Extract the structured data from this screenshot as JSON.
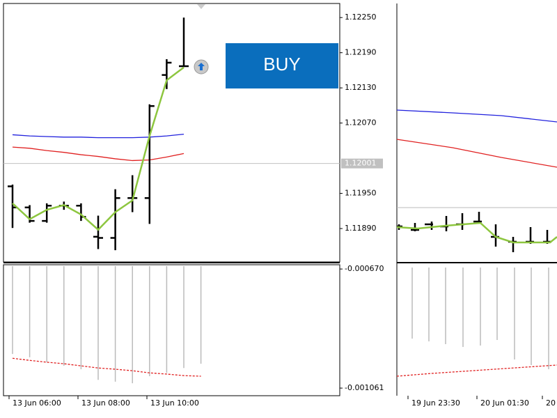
{
  "left_chart": {
    "price_ylim": [
      1.11833,
      1.12274
    ],
    "price_ticks": [
      {
        "value": 1.1225,
        "label": "1.12250"
      },
      {
        "value": 1.1219,
        "label": "1.12190"
      },
      {
        "value": 1.1213,
        "label": "1.12130"
      },
      {
        "value": 1.1207,
        "label": "1.12070"
      },
      {
        "value": 1.1195,
        "label": "1.11950"
      },
      {
        "value": 1.1189,
        "label": "1.11890"
      }
    ],
    "current_price": 1.12001,
    "bars": {
      "open": [
        1.11962,
        1.11926,
        1.11903,
        1.11929,
        1.11929,
        1.11876,
        1.11874,
        1.11942,
        1.11942,
        1.12152,
        1.12167
      ],
      "high": [
        1.11965,
        1.1193,
        1.11933,
        1.11936,
        1.11933,
        1.11912,
        1.11957,
        1.11981,
        1.12102,
        1.12179,
        1.1225
      ],
      "low": [
        1.11891,
        1.119,
        1.119,
        1.11922,
        1.11903,
        1.11855,
        1.11853,
        1.11918,
        1.11898,
        1.12128,
        1.12166
      ],
      "close": [
        1.11926,
        1.11903,
        1.11929,
        1.11929,
        1.1191,
        1.11874,
        1.11942,
        1.11942,
        1.12099,
        1.12173,
        1.12167
      ]
    },
    "ma": [
      1.11933,
      1.11906,
      1.11922,
      1.1193,
      1.11914,
      1.11888,
      1.11918,
      1.11938,
      1.12048,
      1.12143,
      1.12165
    ],
    "blue": [
      1.1205,
      1.12048,
      1.12047,
      1.12046,
      1.12046,
      1.12045,
      1.12045,
      1.12045,
      1.12046,
      1.12048,
      1.12051
    ],
    "red": [
      1.12029,
      1.12027,
      1.12023,
      1.1202,
      1.12016,
      1.12013,
      1.12009,
      1.12006,
      1.12007,
      1.12012,
      1.12018
    ],
    "indicator": {
      "ylim": [
        -0.001086,
        -0.000656
      ],
      "ticks": [
        {
          "value": -0.00067,
          "label": "-0.000670"
        },
        -0.001061
      ],
      "histogram": [
        -0.000949,
        -0.00096,
        -0.000976,
        -0.000988,
        -0.000999,
        -0.001034,
        -0.00104,
        -0.001045,
        -0.001022,
        -0.001011,
        -0.000995,
        -0.000981
      ],
      "signal": [
        -0.000963,
        -0.00097,
        -0.000976,
        -0.000981,
        -0.000988,
        -0.000995,
        -0.000999,
        -0.001004,
        -0.001011,
        -0.001015,
        -0.00102,
        -0.001022
      ]
    },
    "time_labels": [
      "13 Jun 06:00",
      "13 Jun 08:00",
      "13 Jun 10:00"
    ]
  },
  "buy_button": {
    "label": "BUY"
  },
  "right_chart": {
    "time_labels": [
      "19 Jun 23:30",
      "20 Jun 01:30",
      "20"
    ]
  }
}
